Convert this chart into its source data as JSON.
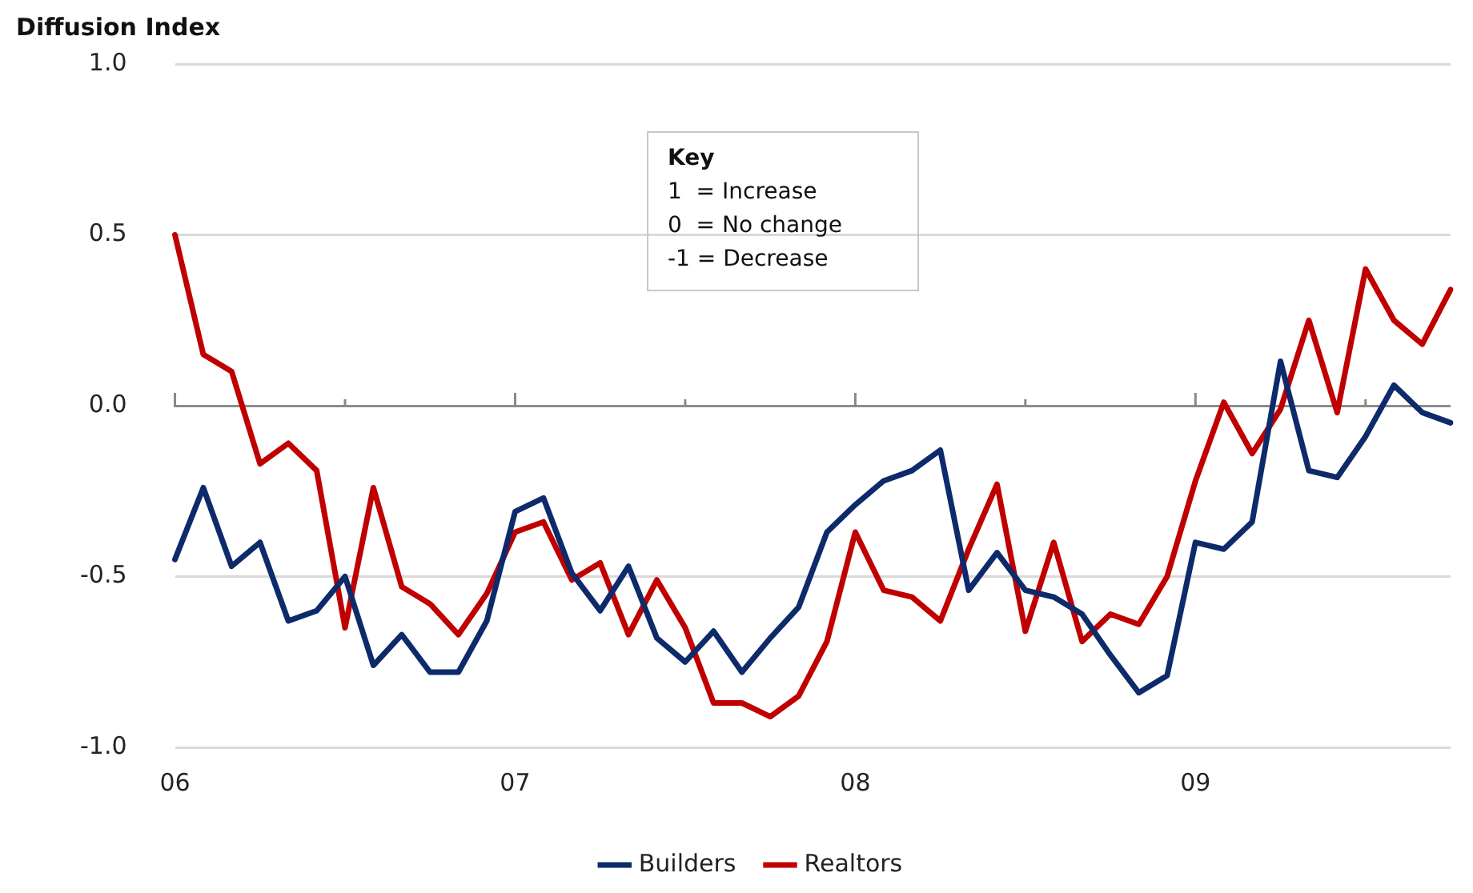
{
  "chart_data": {
    "type": "line",
    "ylabel": "Diffusion Index",
    "categories": [
      "06",
      null,
      null,
      null,
      null,
      null,
      null,
      null,
      null,
      null,
      null,
      null,
      "07",
      null,
      null,
      null,
      null,
      null,
      null,
      null,
      null,
      null,
      null,
      null,
      "08",
      null,
      null,
      null,
      null,
      null,
      null,
      null,
      null,
      null,
      null,
      null,
      "09",
      null,
      null,
      null,
      null,
      null,
      null,
      null,
      null,
      null
    ],
    "series": [
      {
        "name": "Builders",
        "color": "#0d2a6b",
        "values": [
          -0.45,
          -0.24,
          -0.47,
          -0.4,
          -0.63,
          -0.6,
          -0.5,
          -0.76,
          -0.67,
          -0.78,
          -0.78,
          -0.63,
          -0.31,
          -0.27,
          -0.49,
          -0.6,
          -0.47,
          -0.68,
          -0.75,
          -0.66,
          -0.78,
          -0.68,
          -0.59,
          -0.37,
          -0.29,
          -0.22,
          -0.19,
          -0.13,
          -0.54,
          -0.43,
          -0.54,
          -0.56,
          -0.61,
          -0.73,
          -0.84,
          -0.79,
          -0.4,
          -0.42,
          -0.34,
          0.13,
          -0.19,
          -0.21,
          -0.09,
          0.06,
          -0.02,
          -0.05
        ]
      },
      {
        "name": "Realtors",
        "color": "#c00000",
        "values": [
          0.5,
          0.15,
          0.1,
          -0.17,
          -0.11,
          -0.19,
          -0.65,
          -0.24,
          -0.53,
          -0.58,
          -0.67,
          -0.55,
          -0.37,
          -0.34,
          -0.51,
          -0.46,
          -0.67,
          -0.51,
          -0.65,
          -0.87,
          -0.87,
          -0.91,
          -0.85,
          -0.69,
          -0.37,
          -0.54,
          -0.56,
          -0.63,
          -0.42,
          -0.23,
          -0.66,
          -0.4,
          -0.69,
          -0.61,
          -0.64,
          -0.5,
          -0.22,
          0.01,
          -0.14,
          -0.01,
          0.25,
          -0.02,
          0.4,
          0.25,
          0.18,
          0.34
        ]
      }
    ],
    "ylim": [
      -1,
      1
    ],
    "yticks": [
      {
        "value": 1,
        "label": "1.0"
      },
      {
        "value": 0.5,
        "label": "0.5"
      },
      {
        "value": 0,
        "label": "0.0"
      },
      {
        "value": -0.5,
        "label": "-0.5"
      },
      {
        "value": -1,
        "label": "-1.0"
      }
    ],
    "grid": "y",
    "legend": "bottom",
    "marker": "none",
    "line_style": "solid",
    "annotations": [
      "Key",
      "1  = Increase",
      "0  = No change",
      "-1 = Decrease"
    ]
  }
}
